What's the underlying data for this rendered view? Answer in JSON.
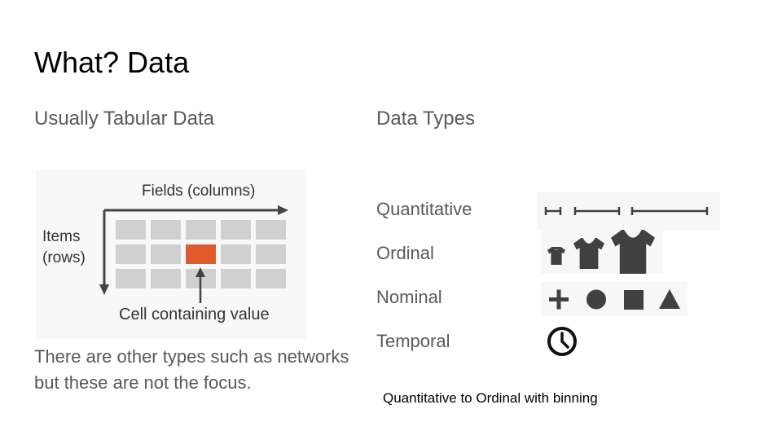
{
  "slide": {
    "title": "What? Data",
    "left_subhead": "Usually Tabular Data",
    "right_subhead": "Data Types",
    "body_text": "There are other types such as networks but these are not the focus.",
    "caption": "Quantitative to Ordinal with binning"
  },
  "table_figure": {
    "fields_label": "Fields (columns)",
    "items_label_line1": "Items",
    "items_label_line2": "(rows)",
    "cell_label": "Cell containing value",
    "rows": 3,
    "columns": 5,
    "highlight_row": 2,
    "highlight_column": 3,
    "cell_color": "#d0d0d0",
    "highlight_color": "#e05a2b",
    "arrow_color": "#444444"
  },
  "data_types": [
    {
      "label": "Quantitative",
      "glyph": "interval-lines-icon"
    },
    {
      "label": "Ordinal",
      "glyph": "tshirt-sizes-icon"
    },
    {
      "label": "Nominal",
      "glyph": "shape-set-icon"
    },
    {
      "label": "Temporal",
      "glyph": "clock-icon"
    }
  ],
  "colors": {
    "title": "#000000",
    "text_gray": "#595959",
    "glyph_dark": "#404040"
  }
}
